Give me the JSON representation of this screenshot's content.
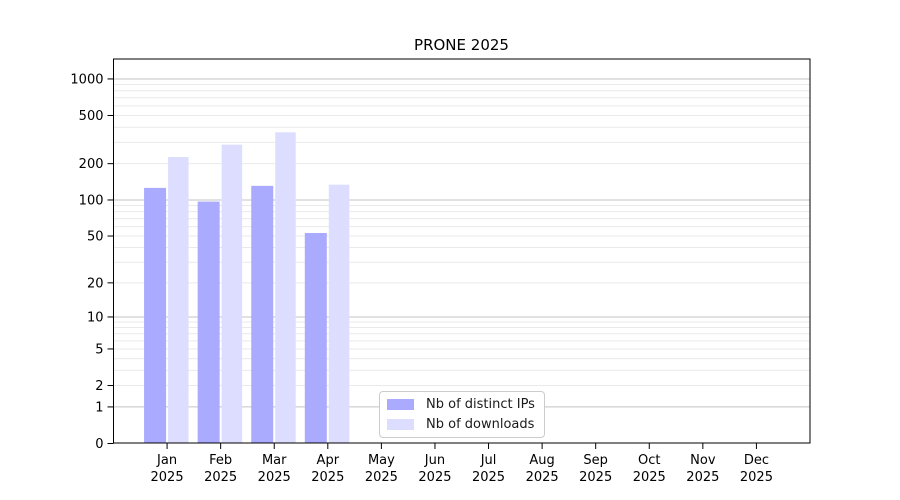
{
  "chart_data": {
    "type": "bar",
    "title": "PRONE 2025",
    "categories": [
      "Jan",
      "Feb",
      "Mar",
      "Apr",
      "May",
      "Jun",
      "Jul",
      "Aug",
      "Sep",
      "Oct",
      "Nov",
      "Dec"
    ],
    "category_year_labels": [
      "2025",
      "2025",
      "2025",
      "2025",
      "2025",
      "2025",
      "2025",
      "2025",
      "2025",
      "2025",
      "2025",
      "2025"
    ],
    "series": [
      {
        "name": "Nb of distinct IPs",
        "color": "#aaaaff",
        "values": [
          126,
          97,
          131,
          53,
          0,
          0,
          0,
          0,
          0,
          0,
          0,
          0
        ]
      },
      {
        "name": "Nb of downloads",
        "color": "#ddddff",
        "values": [
          227,
          287,
          363,
          134,
          0,
          0,
          0,
          0,
          0,
          0,
          0,
          0
        ]
      }
    ],
    "y_ticks": [
      0,
      1,
      2,
      5,
      10,
      20,
      50,
      100,
      200,
      500,
      1000
    ],
    "y_tick_labels": [
      "0",
      "1",
      "2",
      "5",
      "10",
      "20",
      "50",
      "100",
      "200",
      "500",
      "1000"
    ],
    "y_scale": "log10(1+x)",
    "ylim": [
      0,
      1000
    ],
    "grid": "horizontal",
    "grid_major_values": [
      1,
      10,
      100,
      1000
    ],
    "grid_minor_multiples": [
      2,
      3,
      4,
      5,
      6,
      7,
      8,
      9
    ],
    "legend_position": "bottom-center",
    "colors": {
      "axis": "#000000",
      "tick_text": "#000000",
      "grid_major": "#c3c3c3",
      "grid_minor": "#e9e9e9",
      "background": "#ffffff"
    }
  }
}
